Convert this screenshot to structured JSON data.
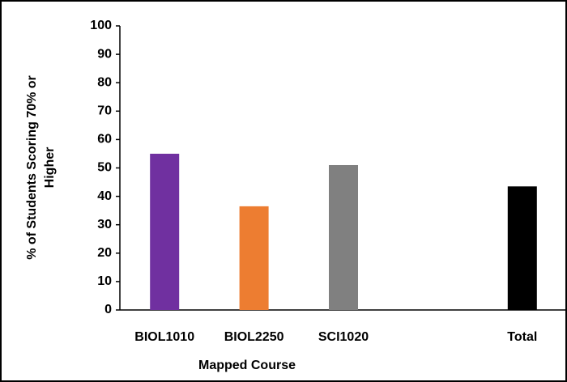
{
  "chart_data": {
    "type": "bar",
    "categories": [
      "BIOL1010",
      "BIOL2250",
      "SCI1020",
      null,
      "Total"
    ],
    "values": [
      55,
      36.5,
      51,
      null,
      43.5
    ],
    "colors": [
      "#7030a0",
      "#ed7d31",
      "#808080",
      null,
      "#000000"
    ],
    "xlabel": "Mapped Course",
    "ylabel": [
      "% of Students Scoring 70% or",
      "Higher"
    ],
    "ylim": [
      0,
      100
    ],
    "yticks": [
      0,
      10,
      20,
      30,
      40,
      50,
      60,
      70,
      80,
      90,
      100
    ],
    "grid": false
  }
}
